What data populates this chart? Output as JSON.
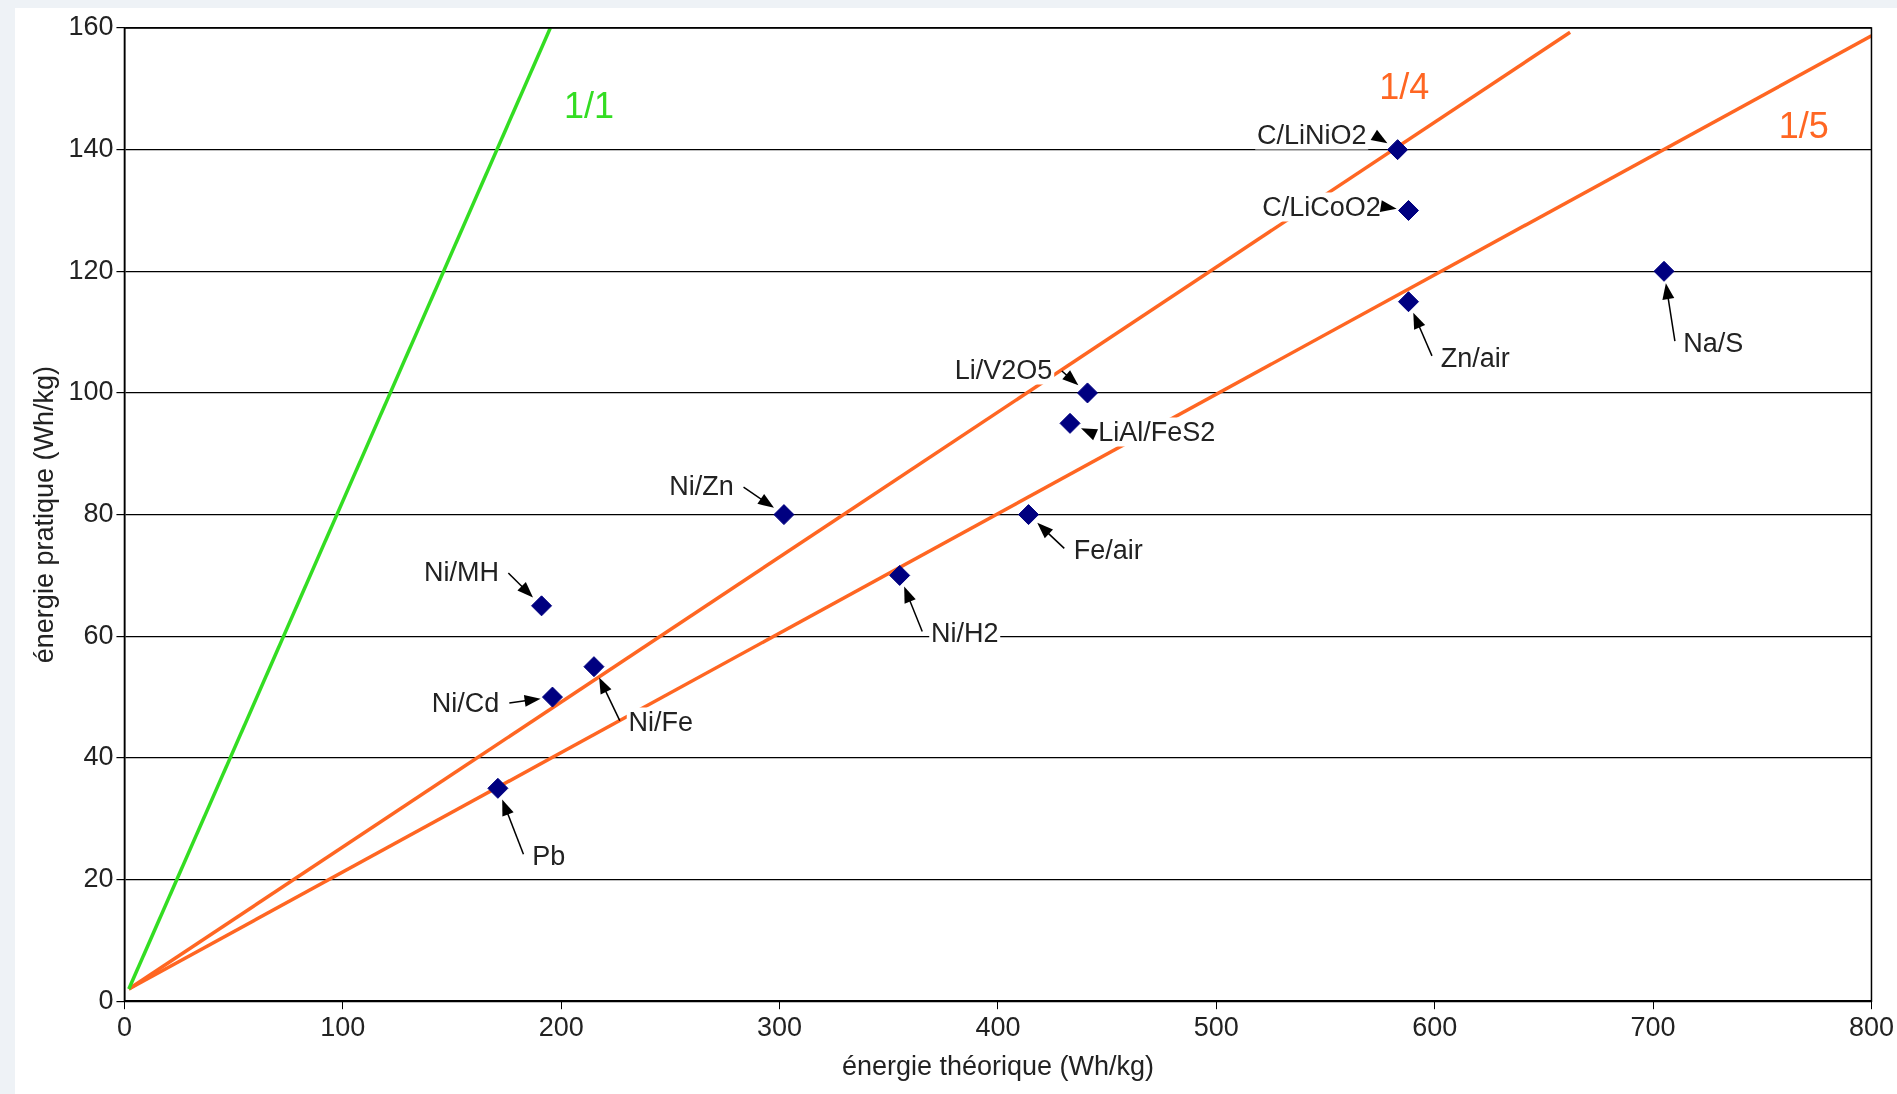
{
  "chart_data": {
    "type": "scatter",
    "xlabel": "énergie théorique (Wh/kg)",
    "ylabel": "énergie pratique (Wh/kg)",
    "xlim": [
      0,
      800
    ],
    "xticks": [
      0,
      100,
      200,
      300,
      400,
      500,
      600,
      700,
      800
    ],
    "ylim": [
      0,
      160
    ],
    "yticks": [
      0,
      20,
      40,
      60,
      80,
      100,
      120,
      140,
      160
    ],
    "grid": "y",
    "legend": false,
    "series": [
      {
        "type": "scatter",
        "color": "#000080",
        "marker": "diamond",
        "x": [
          171,
          196,
          215,
          191,
          302,
          355,
          414,
          433,
          441,
          583,
          588,
          588,
          705
        ],
        "values": [
          35,
          50,
          55,
          65,
          80,
          70,
          80,
          95,
          100,
          140,
          130,
          115,
          120
        ]
      },
      {
        "type": "line",
        "name": "1/1",
        "color": "#33dd22",
        "marker": "none",
        "x": [
          2,
          195
        ],
        "values": [
          2,
          160
        ]
      },
      {
        "type": "line",
        "name": "1/4",
        "color": "#ff6622",
        "marker": "none",
        "x": [
          2,
          662
        ],
        "values": [
          2,
          159.3
        ]
      },
      {
        "type": "line",
        "name": "1/5",
        "color": "#ff6622",
        "marker": "none",
        "x": [
          2,
          800
        ],
        "values": [
          2,
          158.7
        ]
      }
    ],
    "annotations": [
      {
        "text": "Pb",
        "x": 171,
        "y": 35
      },
      {
        "text": "Ni/Cd",
        "x": 196,
        "y": 50
      },
      {
        "text": "Ni/Fe",
        "x": 215,
        "y": 55
      },
      {
        "text": "Ni/MH",
        "x": 191,
        "y": 65
      },
      {
        "text": "Ni/Zn",
        "x": 302,
        "y": 80
      },
      {
        "text": "Ni/H2",
        "x": 355,
        "y": 70
      },
      {
        "text": "Fe/air",
        "x": 414,
        "y": 80
      },
      {
        "text": "LiAl/FeS2",
        "x": 433,
        "y": 95
      },
      {
        "text": "Li/V2O5",
        "x": 441,
        "y": 100
      },
      {
        "text": "C/LiNiO2",
        "x": 583,
        "y": 140
      },
      {
        "text": "C/LiCoO2",
        "x": 588,
        "y": 130
      },
      {
        "text": "Zn/air",
        "x": 588,
        "y": 115
      },
      {
        "text": "Na/S",
        "x": 705,
        "y": 120
      }
    ]
  }
}
